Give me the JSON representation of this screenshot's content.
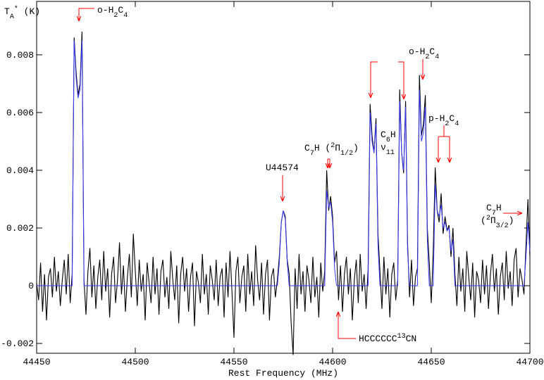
{
  "chart_data": {
    "type": "line",
    "x_label": "Rest Frequency (MHz)",
    "y_label": [
      {
        "text": "T"
      },
      {
        "text": "A",
        "shift": "sub"
      },
      {
        "text": "*",
        "shift": "super"
      },
      {
        "text": " (K)"
      }
    ],
    "xlim": [
      44450,
      44700
    ],
    "ylim": [
      -0.00234,
      0.00985
    ],
    "xticks": [
      44450,
      44500,
      44550,
      44600,
      44650,
      44700
    ],
    "yticks": [
      -0.002,
      0,
      0.002,
      0.004,
      0.006,
      0.008
    ],
    "x": [
      44450,
      44451,
      44452,
      44453,
      44454,
      44455,
      44456,
      44457,
      44458,
      44459,
      44460,
      44461,
      44462,
      44463,
      44464,
      44465,
      44466,
      44467,
      44468,
      44469,
      44470,
      44471,
      44472,
      44473,
      44474,
      44475,
      44476,
      44477,
      44478,
      44479,
      44480,
      44481,
      44482,
      44483,
      44484,
      44485,
      44486,
      44487,
      44488,
      44489,
      44490,
      44491,
      44492,
      44493,
      44494,
      44495,
      44496,
      44497,
      44498,
      44499,
      44500,
      44501,
      44502,
      44503,
      44504,
      44505,
      44506,
      44507,
      44508,
      44509,
      44510,
      44511,
      44512,
      44513,
      44514,
      44515,
      44516,
      44517,
      44518,
      44519,
      44520,
      44521,
      44522,
      44523,
      44524,
      44525,
      44526,
      44527,
      44528,
      44529,
      44530,
      44531,
      44532,
      44533,
      44534,
      44535,
      44536,
      44537,
      44538,
      44539,
      44540,
      44541,
      44542,
      44543,
      44544,
      44545,
      44546,
      44547,
      44548,
      44549,
      44550,
      44551,
      44552,
      44553,
      44554,
      44555,
      44556,
      44557,
      44558,
      44559,
      44560,
      44561,
      44562,
      44563,
      44564,
      44565,
      44566,
      44567,
      44568,
      44569,
      44570,
      44571,
      44572,
      44573,
      44574,
      44575,
      44576,
      44577,
      44578,
      44579,
      44580,
      44581,
      44582,
      44583,
      44584,
      44585,
      44586,
      44587,
      44588,
      44589,
      44590,
      44591,
      44592,
      44593,
      44594,
      44595,
      44596,
      44597,
      44598,
      44599,
      44600,
      44601,
      44602,
      44603,
      44604,
      44605,
      44606,
      44607,
      44608,
      44609,
      44610,
      44611,
      44612,
      44613,
      44614,
      44615,
      44616,
      44617,
      44618,
      44619,
      44620,
      44621,
      44622,
      44623,
      44624,
      44625,
      44626,
      44627,
      44628,
      44629,
      44630,
      44631,
      44632,
      44633,
      44634,
      44635,
      44636,
      44637,
      44638,
      44639,
      44640,
      44641,
      44642,
      44643,
      44644,
      44645,
      44646,
      44647,
      44648,
      44649,
      44650,
      44651,
      44652,
      44653,
      44654,
      44655,
      44656,
      44657,
      44658,
      44659,
      44660,
      44661,
      44662,
      44663,
      44664,
      44665,
      44666,
      44667,
      44668,
      44669,
      44670,
      44671,
      44672,
      44673,
      44674,
      44675,
      44676,
      44677,
      44678,
      44679,
      44680,
      44681,
      44682,
      44683,
      44684,
      44685,
      44686,
      44687,
      44688,
      44689,
      44690,
      44691,
      44692,
      44693,
      44694,
      44695,
      44696,
      44697,
      44698,
      44699,
      44700
    ],
    "series": [
      {
        "color": "#000000",
        "values": [
          0.0001,
          -0.0005,
          0.0008,
          -0.0009,
          0.0004,
          -0.0012,
          0.0003,
          0.0006,
          -0.0004,
          0.001,
          -0.0002,
          0.0005,
          -0.0007,
          0.0002,
          0.0009,
          -0.0003,
          0.0011,
          -0.0006,
          0.0004,
          0.0086,
          0.0074,
          0.0066,
          0.007,
          0.0088,
          0.0002,
          -0.001,
          0.0005,
          0.0013,
          -0.0004,
          0.0007,
          -0.0008,
          0.0003,
          0.0009,
          -0.0005,
          0.0012,
          -0.0002,
          0.0006,
          -0.0011,
          0.0004,
          0.001,
          -0.0006,
          0.0002,
          0.0015,
          -0.0003,
          0.0007,
          -0.0009,
          0.0003,
          0.0011,
          -0.0004,
          0.0018,
          0.0005,
          -0.0007,
          0.0009,
          -0.0002,
          0.0004,
          -0.0012,
          0.0008,
          0.0001,
          -0.0006,
          0.001,
          -0.0003,
          0.0006,
          -0.001,
          0.0005,
          0.0009,
          -0.0004,
          0.0003,
          -0.0008,
          0.0012,
          0.0002,
          -0.0005,
          0.0007,
          -0.0013,
          0.0004,
          0.001,
          -0.0002,
          0.0006,
          -0.0009,
          0.0003,
          0.0008,
          -0.0014,
          0.0005,
          0.0001,
          -0.0006,
          0.0011,
          -0.0003,
          0.0004,
          -0.001,
          0.0007,
          0.0002,
          -0.0005,
          0.0009,
          -0.0007,
          0.0003,
          0.0006,
          -0.0011,
          0.0008,
          -0.0004,
          0.0012,
          -0.0002,
          -0.0018,
          0.0005,
          0.001,
          -0.0006,
          0.0003,
          0.0007,
          -0.0009,
          0.0011,
          -0.0003,
          0.0005,
          -0.0007,
          0.0014,
          0.0002,
          -0.0005,
          0.0008,
          -0.001,
          0.0004,
          0.0009,
          -0.0012,
          0.0003,
          0.0006,
          -0.0004,
          0.0002,
          0.001,
          0.0022,
          0.0026,
          0.0024,
          0.0009,
          0.0004,
          -0.0013,
          -0.0024,
          0.0006,
          -0.0008,
          0.0011,
          -0.0003,
          0.0005,
          -0.0009,
          0.0007,
          0.0002,
          -0.0006,
          0.001,
          -0.0004,
          0.0003,
          -0.0011,
          0.0008,
          -0.0002,
          0.0005,
          0.004,
          0.0026,
          0.0031,
          0.0024,
          0.0008,
          0.0012,
          -0.0005,
          0.0007,
          -0.0009,
          0.0004,
          0.001,
          -0.0003,
          0.0006,
          -0.0012,
          0.0002,
          0.0009,
          -0.0006,
          0.0011,
          -0.0002,
          0.0004,
          -0.0008,
          0.0006,
          0.0063,
          0.0052,
          0.0046,
          0.0058,
          0.0018,
          0.0005,
          -0.0008,
          0.001,
          -0.0003,
          0.0006,
          -0.0011,
          0.0004,
          0.0008,
          -0.0005,
          0.0002,
          0.0068,
          0.0046,
          0.0039,
          0.0064,
          0.0015,
          -0.0004,
          0.0009,
          -0.0007,
          0.0003,
          0.0006,
          0.0073,
          0.0052,
          0.0056,
          0.0066,
          0.002,
          0.0008,
          -0.0006,
          0.0012,
          0.0041,
          0.0026,
          0.0022,
          0.0032,
          0.0018,
          0.0024,
          0.0019,
          0.0021,
          0.001,
          0.002,
          0.0004,
          -0.0007,
          0.001,
          -0.0002,
          0.0006,
          -0.0009,
          0.0012,
          0.0003,
          -0.0005,
          0.0008,
          -0.0011,
          0.0005,
          0.0002,
          -0.0006,
          0.0009,
          -0.0003,
          0.0007,
          -0.0008,
          0.0004,
          0.0011,
          -0.0002,
          0.0006,
          -0.001,
          0.0003,
          0.0008,
          -0.0005,
          0.0012,
          -0.0001,
          0.0005,
          -0.0007,
          0.0009,
          0.0013,
          -0.0004,
          0.0006,
          0.0002,
          -0.0003,
          0.0014,
          0.003,
          0.001
        ]
      },
      {
        "color": "#3a3aff",
        "values": [
          0,
          0,
          0,
          0,
          0,
          0,
          0,
          0,
          0,
          0,
          0,
          0,
          0,
          0,
          0,
          0,
          0,
          0,
          0,
          0.0085,
          0.0072,
          0.0065,
          0.0068,
          0.0085,
          0,
          0,
          0,
          0,
          0,
          0,
          0,
          0,
          0,
          0,
          0,
          0,
          0,
          0,
          0,
          0,
          0,
          0,
          0,
          0,
          0,
          0,
          0,
          0,
          0,
          0,
          0,
          0,
          0,
          0,
          0,
          0,
          0,
          0,
          0,
          0,
          0,
          0,
          0,
          0,
          0,
          0,
          0,
          0,
          0,
          0,
          0,
          0,
          0,
          0,
          0,
          0,
          0,
          0,
          0,
          0,
          0,
          0,
          0,
          0,
          0,
          0,
          0,
          0,
          0,
          0,
          0,
          0,
          0,
          0,
          0,
          0,
          0,
          0,
          0,
          0,
          0,
          0,
          0,
          0,
          0,
          0,
          0,
          0,
          0,
          0,
          0,
          0,
          0,
          0,
          0,
          0,
          0,
          0,
          0,
          0,
          0,
          0,
          0,
          0.0008,
          0.0022,
          0.0026,
          0.0023,
          0.0008,
          0,
          0,
          0,
          0,
          0,
          0,
          0,
          0,
          0,
          0,
          0,
          0,
          0,
          0,
          0,
          0,
          0,
          0,
          0,
          0.0033,
          0.0027,
          0.0029,
          0.0022,
          0.0006,
          0,
          0,
          0,
          0,
          0,
          0,
          0,
          0,
          0,
          0,
          0,
          0,
          0,
          0,
          0,
          0,
          0,
          0.006,
          0.005,
          0.0046,
          0.0056,
          0.0014,
          0,
          0,
          0,
          0,
          0,
          0,
          0,
          0,
          0,
          0,
          0.0064,
          0.0046,
          0.004,
          0.0062,
          0.0012,
          0,
          0,
          0,
          0,
          0,
          0.0068,
          0.005,
          0.0053,
          0.0062,
          0.0016,
          0,
          0,
          0,
          0.0035,
          0.0026,
          0.0024,
          0.0028,
          0.002,
          0.0022,
          0.0019,
          0.002,
          0.0012,
          0.0016,
          0,
          0,
          0,
          0,
          0,
          0,
          0,
          0,
          0,
          0,
          0,
          0,
          0,
          0,
          0,
          0,
          0,
          0,
          0,
          0,
          0,
          0,
          0,
          0,
          0,
          0,
          0,
          0,
          0,
          0,
          0,
          0,
          0,
          0,
          0,
          0,
          0.001,
          0.0022,
          0.0012
        ]
      }
    ],
    "annotation_color": "#ff0000",
    "annotations": [
      {
        "lines": [
          [
            {
              "text": "o-H"
            },
            {
              "text": "2",
              "shift": "sub"
            },
            {
              "text": "C"
            },
            {
              "text": "4",
              "shift": "sub"
            }
          ]
        ]
      },
      {
        "lines": [
          [
            {
              "text": "U44574"
            }
          ]
        ]
      },
      {
        "lines": [
          [
            {
              "text": "C"
            },
            {
              "text": "7",
              "shift": "sub"
            },
            {
              "text": "H ("
            },
            {
              "text": "2",
              "shift": "super"
            },
            {
              "text": "Π"
            },
            {
              "text": "1/2",
              "shift": "sub"
            },
            {
              "text": ")"
            }
          ]
        ]
      },
      {
        "lines": [
          [
            {
              "text": "HCCCCCC"
            },
            {
              "text": "13",
              "shift": "super"
            },
            {
              "text": "CN"
            }
          ]
        ]
      },
      {
        "lines": [
          [
            {
              "text": "C"
            },
            {
              "text": "6",
              "shift": "sub"
            },
            {
              "text": "H"
            }
          ],
          [
            {
              "text": "ν"
            },
            {
              "text": "11",
              "shift": "sub"
            }
          ]
        ]
      },
      {
        "lines": [
          [
            {
              "text": "o-H"
            },
            {
              "text": "2",
              "shift": "sub"
            },
            {
              "text": "C"
            },
            {
              "text": "4",
              "shift": "sub"
            }
          ]
        ]
      },
      {
        "lines": [
          [
            {
              "text": "p-H"
            },
            {
              "text": "2",
              "shift": "sub"
            },
            {
              "text": "C"
            },
            {
              "text": "4",
              "shift": "sub"
            }
          ]
        ]
      },
      {
        "lines": [
          [
            {
              "text": "C"
            },
            {
              "text": "7",
              "shift": "sub"
            },
            {
              "text": "H"
            }
          ],
          [
            {
              "text": "("
            },
            {
              "text": "2",
              "shift": "super"
            },
            {
              "text": "Π"
            },
            {
              "text": "3/2",
              "shift": "sub"
            },
            {
              "text": ")"
            }
          ]
        ]
      }
    ]
  }
}
